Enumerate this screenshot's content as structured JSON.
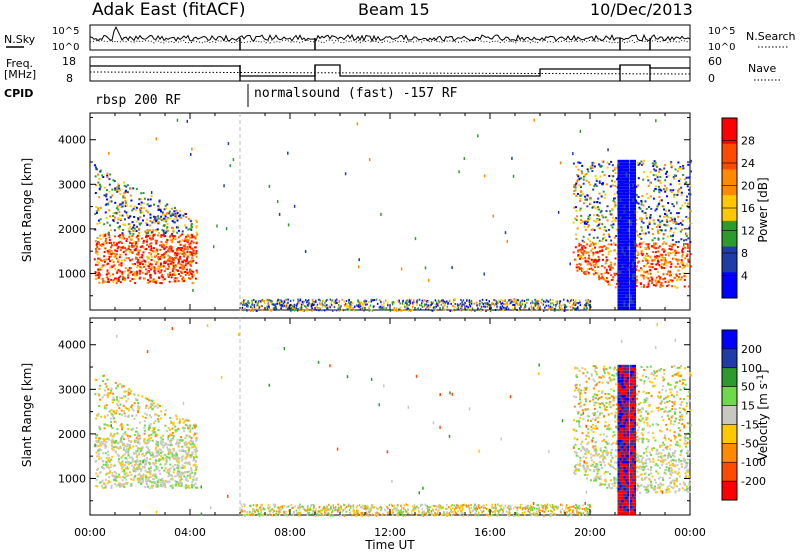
{
  "header": {
    "station": "Adak East (fitACF)",
    "beam": "Beam 15",
    "date": "10/Dec/2013"
  },
  "noise_panel": {
    "left_label": "N.Sky",
    "right_label": "N.Search",
    "left_ticks": [
      "10^5",
      "10^0"
    ],
    "right_ticks": [
      "10^5",
      "10^0"
    ]
  },
  "freq_panel": {
    "left_label_1": "Freq.",
    "left_label_2": "[MHz]",
    "left_ticks": [
      "18",
      "8"
    ],
    "right_label": "Nave",
    "right_ticks": [
      "60",
      "0"
    ]
  },
  "cpid": {
    "label": "CPID",
    "segments": [
      {
        "text": "rbsp 200 RF",
        "start_h": 0.0
      },
      {
        "text": "normalsound (fast) -157 RF",
        "start_h": 6.0
      }
    ]
  },
  "chart_data": [
    {
      "type": "heatmap",
      "title": "",
      "xlabel": "Time UT",
      "ylabel": "Slant Range [km]",
      "xlim_hours": [
        0,
        24
      ],
      "ylim": [
        180,
        4600
      ],
      "x_ticks": [
        "00:00",
        "04:00",
        "08:00",
        "12:00",
        "16:00",
        "20:00",
        "00:00"
      ],
      "y_ticks": [
        1000,
        2000,
        3000,
        4000
      ],
      "colorbar": {
        "label": "Power [dB]",
        "ticks": [
          "28",
          "24",
          "20",
          "16",
          "12",
          "8",
          "4"
        ],
        "colors": [
          "#ff0000",
          "#ff4a00",
          "#ff8a00",
          "#ffc800",
          "#2e9a2e",
          "#1f3ca8",
          "#0000ff"
        ]
      },
      "regions": [
        {
          "name": "evening scatter",
          "t_start_h": 0.2,
          "t_end_h": 4.2,
          "range_km": [
            800,
            3600
          ]
        },
        {
          "name": "ground scatter band",
          "t_start_h": 6.0,
          "t_end_h": 20.0,
          "range_km": [
            180,
            450
          ]
        },
        {
          "name": "morning scatter",
          "t_start_h": 19.5,
          "t_end_h": 24.0,
          "range_km": [
            800,
            3600
          ]
        }
      ]
    },
    {
      "type": "heatmap",
      "title": "",
      "xlabel": "Time UT",
      "ylabel": "Slant Range [km]",
      "xlim_hours": [
        0,
        24
      ],
      "ylim": [
        180,
        4600
      ],
      "x_ticks": [
        "00:00",
        "04:00",
        "08:00",
        "12:00",
        "16:00",
        "20:00",
        "00:00"
      ],
      "y_ticks": [
        1000,
        2000,
        3000,
        4000
      ],
      "colorbar": {
        "label": "Velocity [m s^-1]",
        "ticks": [
          "200",
          "100",
          "50",
          "15",
          "-15",
          "-50",
          "-100",
          "-200"
        ],
        "colors": [
          "#0000ff",
          "#1f3ca8",
          "#2e9a2e",
          "#6ed94a",
          "#c8c8c0",
          "#ffc800",
          "#ff8a00",
          "#ff4a00",
          "#ff0000"
        ]
      },
      "regions": [
        {
          "name": "evening scatter",
          "t_start_h": 0.2,
          "t_end_h": 4.2,
          "range_km": [
            800,
            3600
          ]
        },
        {
          "name": "ground scatter band",
          "t_start_h": 6.0,
          "t_end_h": 20.0,
          "range_km": [
            180,
            450
          ]
        },
        {
          "name": "morning scatter",
          "t_start_h": 19.5,
          "t_end_h": 24.0,
          "range_km": [
            800,
            3600
          ]
        }
      ]
    }
  ]
}
